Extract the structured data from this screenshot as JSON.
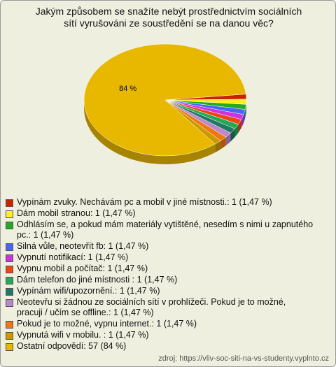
{
  "chart_data": {
    "type": "pie",
    "title": "Jakým způsobem se snažíte nebýt prostřednictvím sociálních sítí vyrušováni ze soustředění se na danou věc?",
    "categories": [
      "Vypínám zvuky. Nechávám pc a mobil v jiné místnosti.: 1 (1,47 %)",
      "Dám mobil stranou: 1 (1,47 %)",
      "Odhlásím se, a pokud mám materiály vytištěné, nesedím s nimi u zapnutého pc.: 1 (1,47 %)",
      "Silná vůle, neotevřít fb: 1 (1,47 %)",
      "Vypnutí notifikací: 1 (1,47 %)",
      "Vypnu mobil a počítač: 1 (1,47 %)",
      "Dám telefon do jiné místnosti : 1 (1,47 %)",
      "Vypínám wifi/upozornění.: 1 (1,47 %)",
      "Neotevřu si žádnou ze sociálních sítí v prohlížeči. Pokud je to možné, pracuji / učím se offline.: 1 (1,47 %)",
      "Pokud je to možné, vypnu internet.: 1 (1,47 %)",
      "Vypnutá wifi v mobilu. : 1 (1,47 %)",
      "Ostatní odpovědí: 57 (84 %)"
    ],
    "values": [
      1.47,
      1.47,
      1.47,
      1.47,
      1.47,
      1.47,
      1.47,
      1.47,
      1.47,
      1.47,
      1.47,
      84
    ],
    "value_labels": [
      null,
      null,
      null,
      null,
      null,
      null,
      null,
      null,
      null,
      null,
      null,
      "84 %"
    ],
    "colors": [
      "#cc2200",
      "#ffee22",
      "#22aa22",
      "#4466ff",
      "#cc33dd",
      "#ee4411",
      "#22aa55",
      "#227766",
      "#bb88cc",
      "#ee7711",
      "#cc9900",
      "#e8b800"
    ],
    "source": "zdroj: https://vliv-soc-siti-na-vs-studenty.vyplnto.cz"
  }
}
